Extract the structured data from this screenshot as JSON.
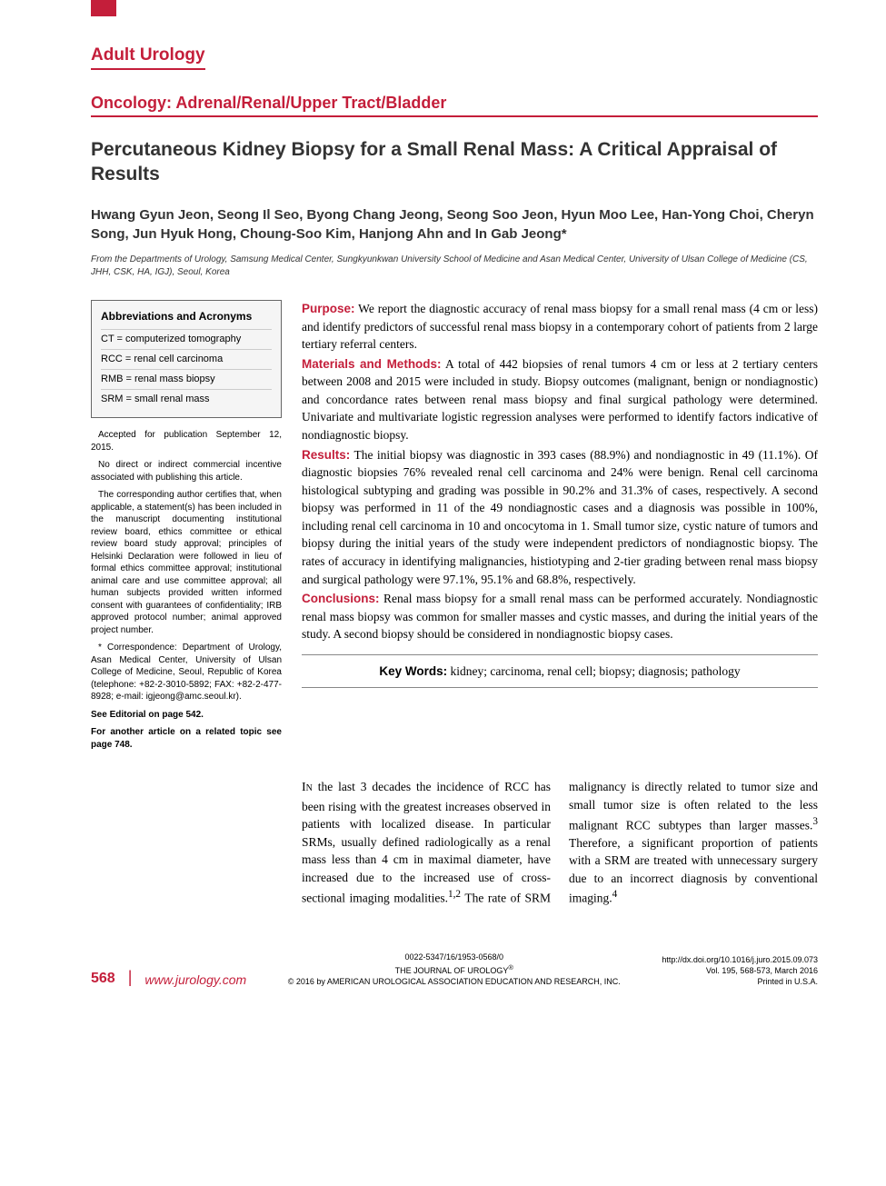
{
  "colors": {
    "accent": "#c41e3a",
    "text": "#333333",
    "border_gray": "#888888",
    "box_bg": "#f5f5f5"
  },
  "typography": {
    "heading_family": "Arial, Helvetica, sans-serif",
    "body_family": "Georgia, 'Times New Roman', serif",
    "section_label_size": 19,
    "title_size": 21,
    "authors_size": 15,
    "abstract_size": 13.5,
    "sidebar_size": 10
  },
  "section_label": "Adult Urology",
  "subsection_label": "Oncology: Adrenal/Renal/Upper Tract/Bladder",
  "title": "Percutaneous Kidney Biopsy for a Small Renal Mass: A Critical Appraisal of Results",
  "authors": "Hwang Gyun Jeon, Seong Il Seo, Byong Chang Jeong, Seong Soo Jeon, Hyun Moo Lee, Han-Yong Choi, Cheryn Song, Jun Hyuk Hong, Choung-Soo Kim, Hanjong Ahn and In Gab Jeong*",
  "affiliation": "From the Departments of Urology, Samsung Medical Center, Sungkyunkwan University School of Medicine and Asan Medical Center, University of Ulsan College of Medicine (CS, JHH, CSK, HA, IGJ), Seoul, Korea",
  "abbreviations": {
    "title": "Abbreviations and Acronyms",
    "items": [
      {
        "abbr": "CT",
        "full": "computerized tomography"
      },
      {
        "abbr": "RCC",
        "full": "renal cell carcinoma"
      },
      {
        "abbr": "RMB",
        "full": "renal mass biopsy"
      },
      {
        "abbr": "SRM",
        "full": "small renal mass"
      }
    ]
  },
  "sidebar_notes": {
    "accepted": "Accepted for publication September 12, 2015.",
    "no_incentive": "No direct or indirect commercial incentive associated with publishing this article.",
    "ethics": "The corresponding author certifies that, when applicable, a statement(s) has been included in the manuscript documenting institutional review board, ethics committee or ethical review board study approval; principles of Helsinki Declaration were followed in lieu of formal ethics committee approval; institutional animal care and use committee approval; all human subjects provided written informed consent with guarantees of confidentiality; IRB approved protocol number; animal approved project number.",
    "correspondence": "* Correspondence: Department of Urology, Asan Medical Center, University of Ulsan College of Medicine, Seoul, Republic of Korea (telephone: +82-2-3010-5892; FAX: +82-2-477-8928; e-mail: igjeong@amc.seoul.kr).",
    "editorial": "See Editorial on page 542.",
    "related": "For another article on a related topic see page 748."
  },
  "abstract": {
    "purpose": {
      "label": "Purpose:",
      "text": " We report the diagnostic accuracy of renal mass biopsy for a small renal mass (4 cm or less) and identify predictors of successful renal mass biopsy in a contemporary cohort of patients from 2 large tertiary referral centers."
    },
    "methods": {
      "label": "Materials and Methods:",
      "text": " A total of 442 biopsies of renal tumors 4 cm or less at 2 tertiary centers between 2008 and 2015 were included in study. Biopsy outcomes (malignant, benign or nondiagnostic) and concordance rates between renal mass biopsy and final surgical pathology were determined. Univariate and multivariate logistic regression analyses were performed to identify factors indicative of nondiagnostic biopsy."
    },
    "results": {
      "label": "Results:",
      "text": " The initial biopsy was diagnostic in 393 cases (88.9%) and nondiagnostic in 49 (11.1%). Of diagnostic biopsies 76% revealed renal cell carcinoma and 24% were benign. Renal cell carcinoma histological subtyping and grading was possible in 90.2% and 31.3% of cases, respectively. A second biopsy was performed in 11 of the 49 nondiagnostic cases and a diagnosis was possible in 100%, including renal cell carcinoma in 10 and oncocytoma in 1. Small tumor size, cystic nature of tumors and biopsy during the initial years of the study were independent predictors of nondiagnostic biopsy. The rates of accuracy in identifying malignancies, histiotyping and 2-tier grading between renal mass biopsy and surgical pathology were 97.1%, 95.1% and 68.8%, respectively."
    },
    "conclusions": {
      "label": "Conclusions:",
      "text": " Renal mass biopsy for a small renal mass can be performed accurately. Nondiagnostic renal mass biopsy was common for smaller masses and cystic masses, and during the initial years of the study. A second biopsy should be considered in nondiagnostic biopsy cases."
    }
  },
  "keywords": {
    "label": "Key Words:",
    "text": " kidney; carcinoma, renal cell; biopsy; diagnosis; pathology"
  },
  "body": {
    "lead": "In",
    "col1": " the last 3 decades the incidence of RCC has been rising with the greatest increases observed in patients with localized disease. In particular SRMs, usually defined radiologically as a renal mass less than 4 cm in maximal diameter, have increased due to the increased use of cross-sectional imaging modalities.",
    "sup1": "1,2",
    "mid": " The rate of SRM malignancy is directly related to tumor size and small tumor size is often related to the less malignant RCC subtypes than larger masses.",
    "sup2": "3",
    "col2": " Therefore, a significant proportion of patients with a SRM are treated with unnecessary surgery due to an incorrect diagnosis by conventional imaging.",
    "sup3": "4"
  },
  "footer": {
    "page": "568",
    "url": "www.jurology.com",
    "issn": "0022-5347/16/1953-0568/0",
    "journal": "THE JOURNAL OF UROLOGY",
    "reg": "®",
    "copyright": "© 2016 by AMERICAN UROLOGICAL ASSOCIATION EDUCATION AND RESEARCH, INC.",
    "doi": "http://dx.doi.org/10.1016/j.juro.2015.09.073",
    "vol": "Vol. 195, 568-573, March 2016",
    "printed": "Printed in U.S.A."
  }
}
